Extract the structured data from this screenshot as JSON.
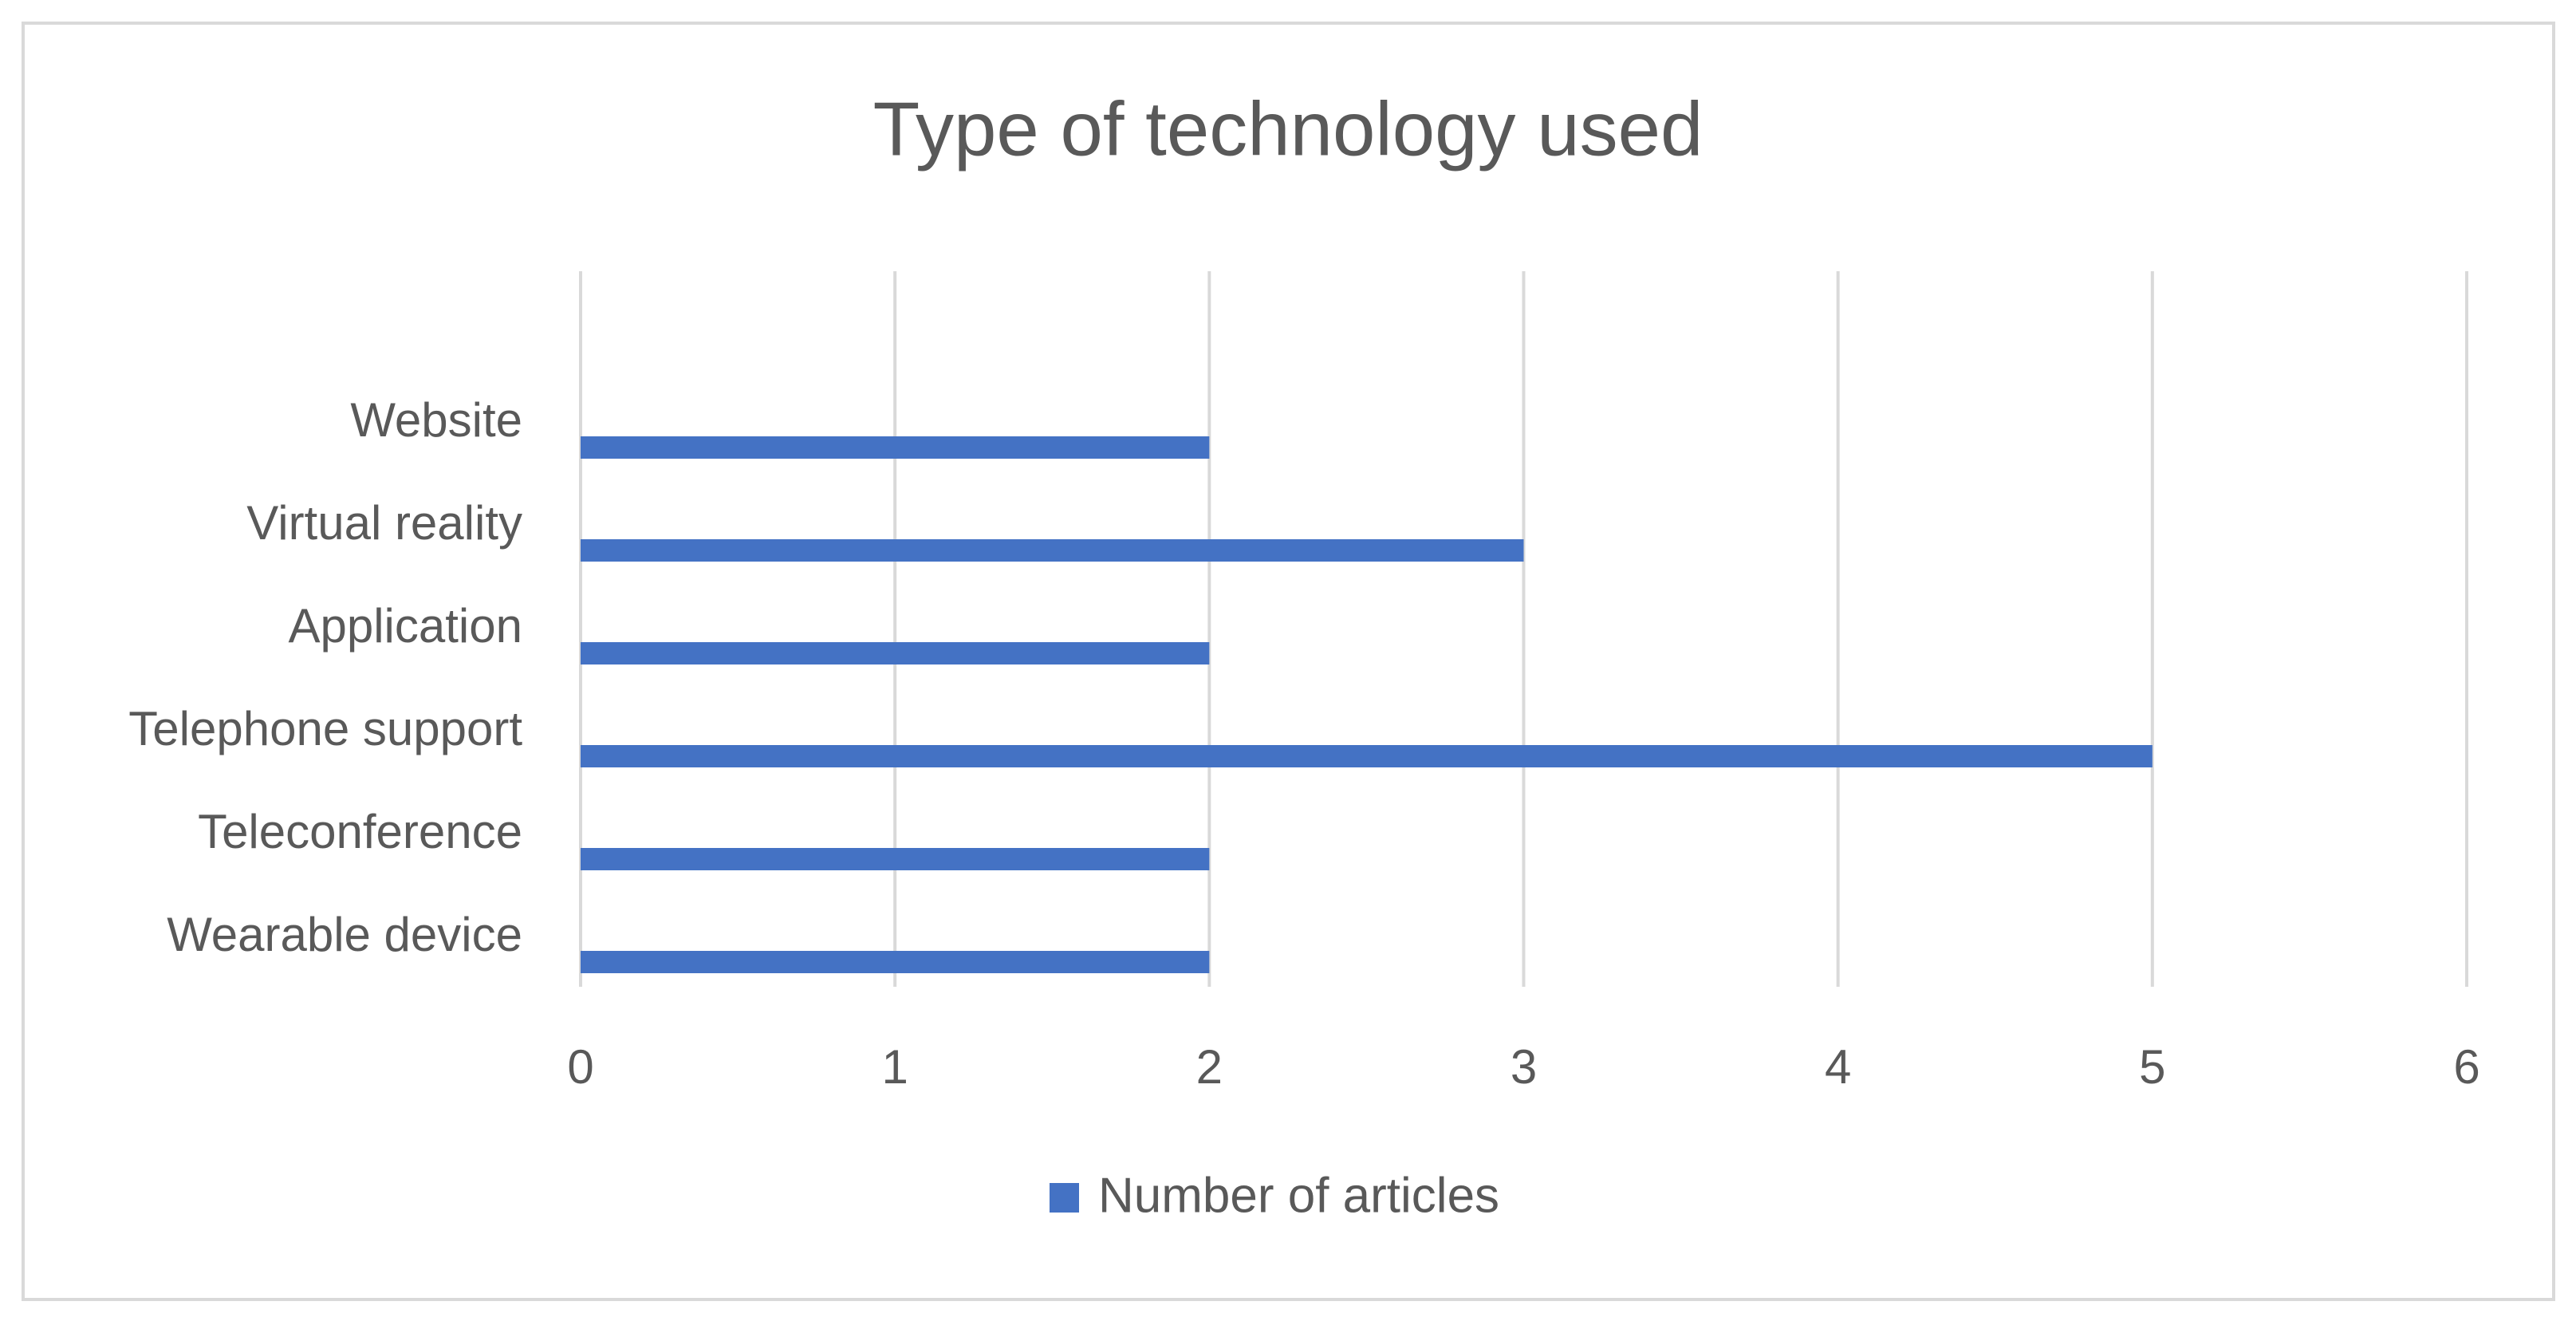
{
  "chart_data": {
    "type": "bar",
    "orientation": "horizontal",
    "title": "Type of technology used",
    "categories": [
      "Website",
      "Virtual reality",
      "Application",
      "Telephone support",
      "Teleconference",
      "Wearable device"
    ],
    "series": [
      {
        "name": "Number of articles",
        "color": "#4472c4",
        "values": [
          2,
          3,
          2,
          5,
          2,
          2
        ]
      }
    ],
    "xlim": [
      0,
      6
    ],
    "xticks": [
      0,
      1,
      2,
      3,
      4,
      5,
      6
    ],
    "grid": true,
    "legend": "bottom"
  }
}
